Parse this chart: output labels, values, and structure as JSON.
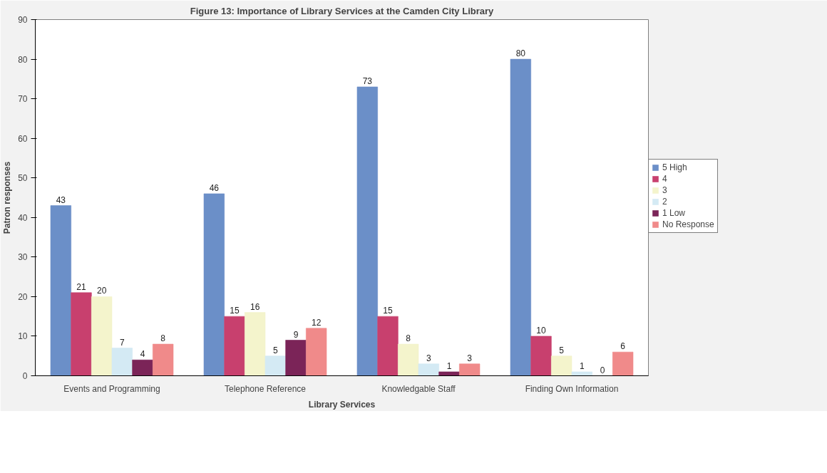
{
  "chart_data": {
    "type": "bar",
    "title": "Figure 13: Importance of Library Services at the Camden City Library",
    "xlabel": "Library Services",
    "ylabel": "Patron responses",
    "categories": [
      "Events and Programming",
      "Telephone Reference",
      "Knowledgable Staff",
      "Finding Own Information"
    ],
    "series": [
      {
        "name": "5 High",
        "color": "#6b8fc8",
        "values": [
          43,
          46,
          73,
          80
        ]
      },
      {
        "name": "4",
        "color": "#c8406e",
        "values": [
          21,
          15,
          15,
          10
        ]
      },
      {
        "name": "3",
        "color": "#f4f4cc",
        "values": [
          20,
          16,
          8,
          5
        ]
      },
      {
        "name": "2",
        "color": "#d4eaf4",
        "values": [
          7,
          5,
          3,
          1
        ]
      },
      {
        "name": "1 Low",
        "color": "#7b2458",
        "values": [
          4,
          9,
          1,
          0
        ]
      },
      {
        "name": "No Response",
        "color": "#f08a8a",
        "values": [
          8,
          12,
          3,
          6
        ]
      }
    ],
    "ylim": [
      0,
      90
    ],
    "yticks": [
      0,
      10,
      20,
      30,
      40,
      50,
      60,
      70,
      80,
      90
    ],
    "data_labels": true,
    "grid": false,
    "legend": "right"
  }
}
